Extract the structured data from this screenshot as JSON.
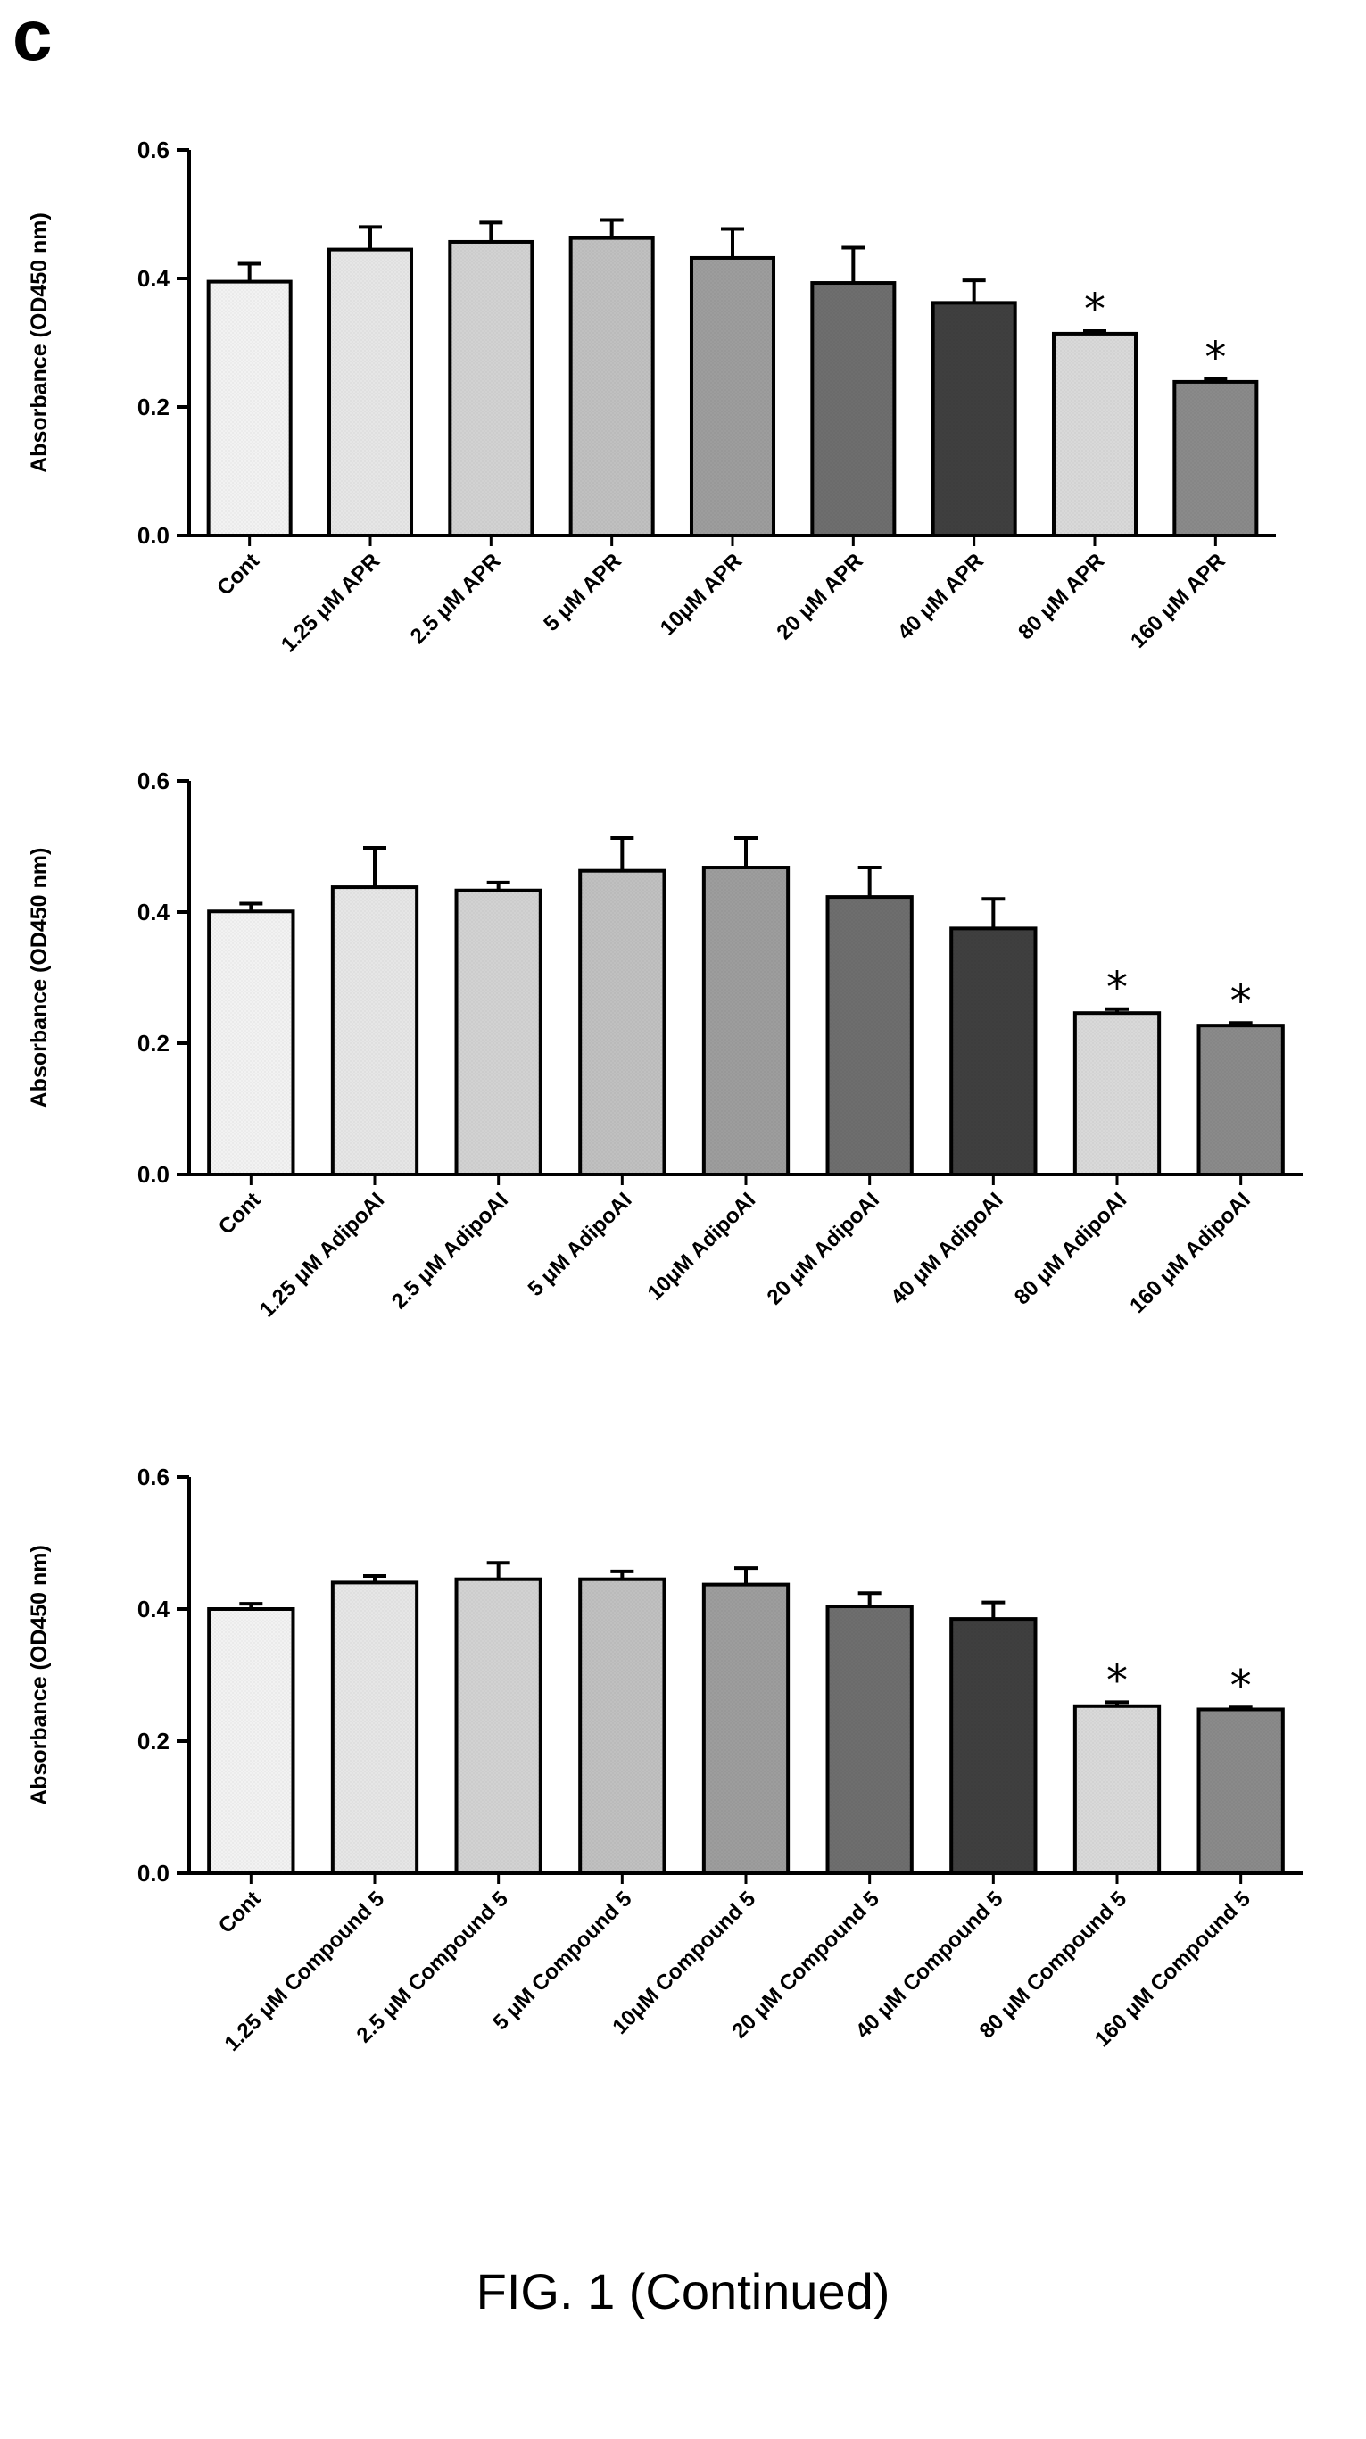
{
  "figure": {
    "panel_letter": "c",
    "caption": "FIG. 1 (Continued)"
  },
  "colors": [
    "#f2f2f2",
    "#e6e6e6",
    "#d2d2d2",
    "#c0c0c0",
    "#9d9d9d",
    "#6e6e6e",
    "#3f3f3f",
    "#d9d9d9",
    "#8a8a8a"
  ],
  "chart_data": [
    {
      "type": "bar",
      "ylabel": "Absorbance (OD450 nm)",
      "ylim": [
        0.0,
        0.6
      ],
      "yticks": [
        "0.0",
        "0.2",
        "0.4",
        "0.6"
      ],
      "categories": [
        "Cont",
        "1.25 μM APR",
        "2.5 μM APR",
        "5 μM APR",
        "10μM APR",
        "20 μM APR",
        "40 μM APR",
        "80 μM APR",
        "160 μM APR"
      ],
      "values": [
        0.395,
        0.445,
        0.457,
        0.463,
        0.432,
        0.393,
        0.362,
        0.314,
        0.239
      ],
      "errors": [
        0.028,
        0.035,
        0.03,
        0.028,
        0.045,
        0.055,
        0.035,
        0.004,
        0.004
      ],
      "significance": [
        "",
        "",
        "",
        "",
        "",
        "",
        "",
        "*",
        "*"
      ]
    },
    {
      "type": "bar",
      "ylabel": "Absorbance (OD450 nm)",
      "ylim": [
        0.0,
        0.6
      ],
      "yticks": [
        "0.0",
        "0.2",
        "0.4",
        "0.6"
      ],
      "categories": [
        "Cont",
        "1.25 μM AdipoAI",
        "2.5 μM AdipoAI",
        "5 μM AdipoAI",
        "10μM AdipoAI",
        "20 μM AdipoAI",
        "40 μM AdipoAI",
        "80 μM AdipoAI",
        "160 μM AdipoAI"
      ],
      "values": [
        0.401,
        0.438,
        0.433,
        0.463,
        0.468,
        0.423,
        0.375,
        0.246,
        0.227
      ],
      "errors": [
        0.012,
        0.06,
        0.012,
        0.05,
        0.045,
        0.045,
        0.045,
        0.006,
        0.004
      ],
      "significance": [
        "",
        "",
        "",
        "",
        "",
        "",
        "",
        "*",
        "*"
      ]
    },
    {
      "type": "bar",
      "ylabel": "Absorbance (OD450 nm)",
      "ylim": [
        0.0,
        0.6
      ],
      "yticks": [
        "0.0",
        "0.2",
        "0.4",
        "0.6"
      ],
      "categories": [
        "Cont",
        "1.25 μM Compound 5",
        "2.5 μM Compound 5",
        "5 μM Compound 5",
        "10μM Compound 5",
        "20 μM Compound 5",
        "40 μM Compound 5",
        "80 μM Compound 5",
        "160 μM Compound 5"
      ],
      "values": [
        0.4,
        0.44,
        0.445,
        0.445,
        0.437,
        0.404,
        0.385,
        0.253,
        0.248
      ],
      "errors": [
        0.008,
        0.01,
        0.025,
        0.012,
        0.025,
        0.02,
        0.025,
        0.006,
        0.003
      ],
      "significance": [
        "",
        "",
        "",
        "",
        "",
        "",
        "",
        "*",
        "*"
      ]
    }
  ]
}
